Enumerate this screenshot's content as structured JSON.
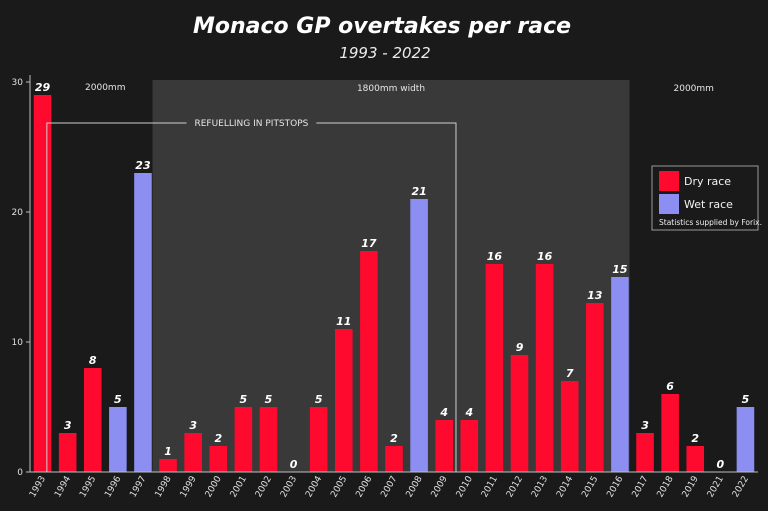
{
  "chart_data": {
    "type": "bar",
    "title": "Monaco GP overtakes per race",
    "subtitle": "1993 - 2022",
    "xlabel": "",
    "ylabel": "",
    "ylim": [
      0,
      30
    ],
    "yticks": [
      "0",
      "10",
      "20",
      "30"
    ],
    "grid": false,
    "categories": [
      "1993",
      "1994",
      "1995",
      "1996",
      "1997",
      "1998",
      "1999",
      "2000",
      "2001",
      "2002",
      "2003",
      "2004",
      "2005",
      "2006",
      "2007",
      "2008",
      "2009",
      "2010",
      "2011",
      "2012",
      "2013",
      "2014",
      "2015",
      "2016",
      "2017",
      "2018",
      "2019",
      "2021",
      "2022"
    ],
    "values": [
      29,
      3,
      8,
      5,
      23,
      1,
      3,
      2,
      5,
      5,
      0,
      5,
      11,
      17,
      2,
      21,
      4,
      4,
      16,
      9,
      16,
      7,
      13,
      15,
      3,
      6,
      2,
      0,
      5
    ],
    "conditions": [
      "dry",
      "dry",
      "dry",
      "wet",
      "wet",
      "dry",
      "dry",
      "dry",
      "dry",
      "dry",
      "dry",
      "dry",
      "dry",
      "dry",
      "dry",
      "wet",
      "dry",
      "dry",
      "dry",
      "dry",
      "dry",
      "dry",
      "dry",
      "wet",
      "dry",
      "dry",
      "dry",
      "dry",
      "wet"
    ],
    "series": [
      {
        "name": "Dry race",
        "color": "#ff0a2f"
      },
      {
        "name": "Wet race",
        "color": "#8c8ef2"
      }
    ],
    "legend": {
      "position": "top-right",
      "note": "Statistics supplied by Forix."
    },
    "annotations": {
      "width_left": "2000mm",
      "width_middle": "1800mm width",
      "width_right": "2000mm",
      "refuelling": "REFUELLING IN PITSTOPS"
    },
    "shaded_region": {
      "from": "1998",
      "to": "2016"
    },
    "refuelling_span": {
      "from": "1994",
      "to": "2009"
    }
  },
  "colors": {
    "background": "#1b1a1a",
    "shade": "#3a3939",
    "dry": "#ff0a2f",
    "wet": "#8c8ef2",
    "axis": "#bdbdbd"
  }
}
